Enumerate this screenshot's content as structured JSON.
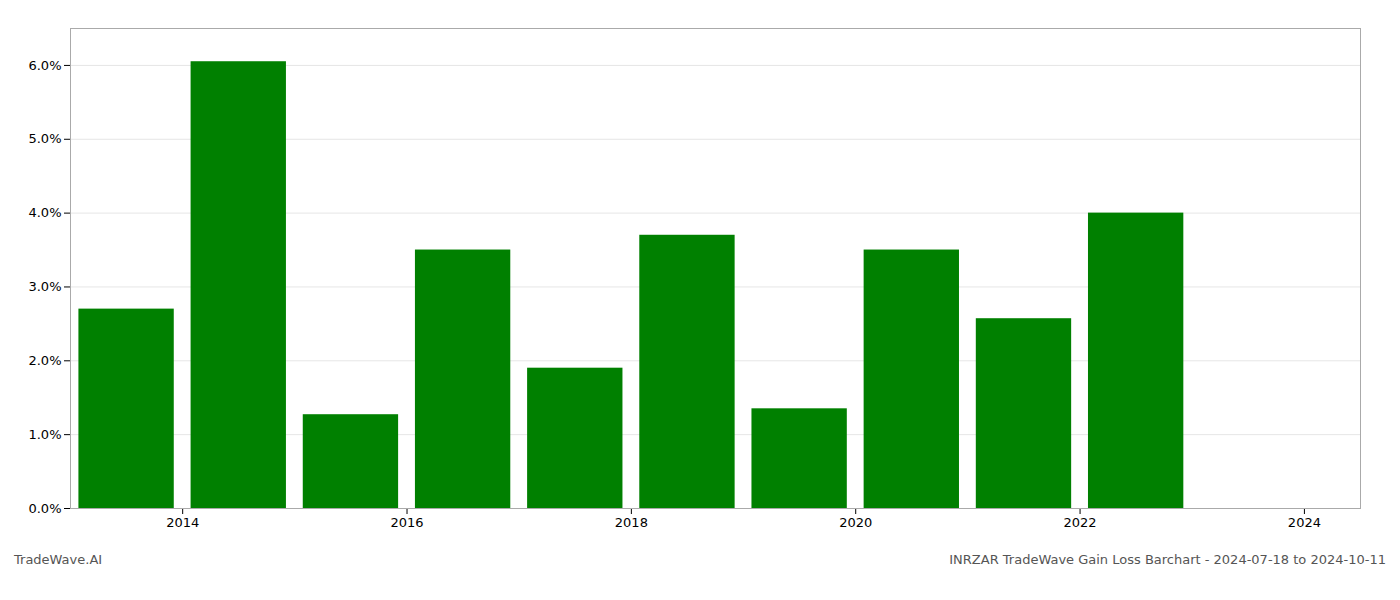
{
  "chart_data": {
    "type": "bar",
    "x": [
      2014,
      2015,
      2016,
      2017,
      2018,
      2019,
      2020,
      2021,
      2022,
      2023
    ],
    "values": [
      0.027,
      0.0605,
      0.0127,
      0.035,
      0.019,
      0.037,
      0.0135,
      0.035,
      0.0257,
      0.04
    ],
    "color": "#008000",
    "xlim": [
      2013.5,
      2025.0
    ],
    "xticks": [
      {
        "value": 2014.5,
        "label": "2014"
      },
      {
        "value": 2016.5,
        "label": "2016"
      },
      {
        "value": 2018.5,
        "label": "2018"
      },
      {
        "value": 2020.5,
        "label": "2020"
      },
      {
        "value": 2022.5,
        "label": "2022"
      },
      {
        "value": 2024.5,
        "label": "2024"
      }
    ],
    "ylim": [
      0,
      0.065
    ],
    "yticks": [
      {
        "value": 0.0,
        "label": "0.0%"
      },
      {
        "value": 0.01,
        "label": "1.0%"
      },
      {
        "value": 0.02,
        "label": "2.0%"
      },
      {
        "value": 0.03,
        "label": "3.0%"
      },
      {
        "value": 0.04,
        "label": "4.0%"
      },
      {
        "value": 0.05,
        "label": "5.0%"
      },
      {
        "value": 0.06,
        "label": "6.0%"
      }
    ],
    "grid": true,
    "annotations": [
      "TradeWave.AI",
      "INRZAR TradeWave Gain Loss Barchart - 2024-07-18 to 2024-10-11"
    ]
  }
}
